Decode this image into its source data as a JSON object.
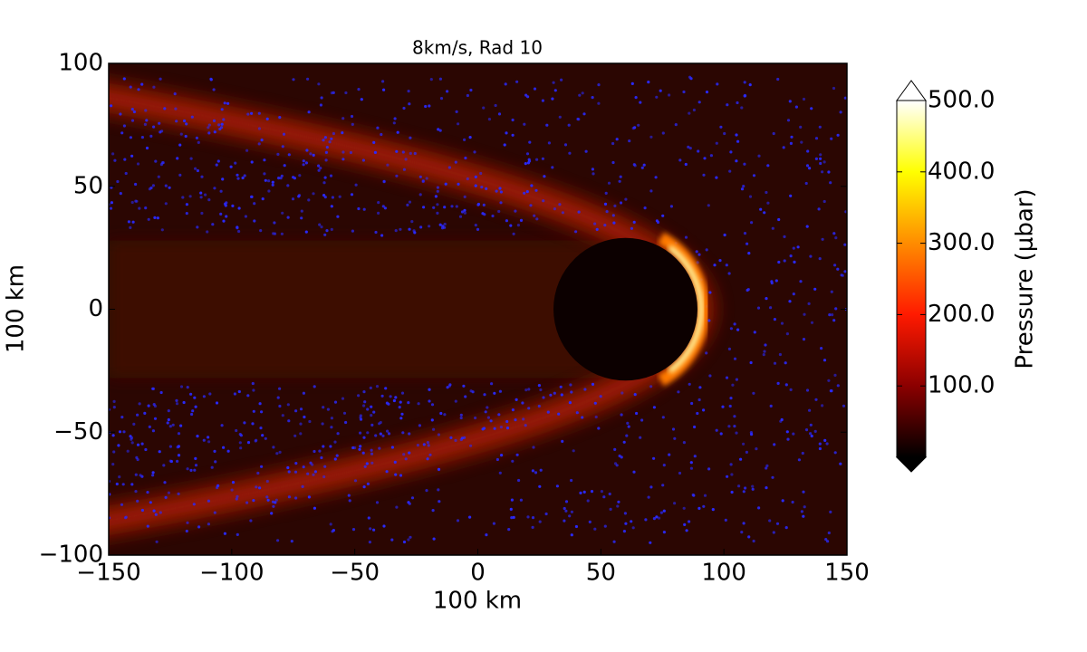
{
  "chart_data": {
    "type": "heatmap",
    "title": "8km/s, Rad 10",
    "xlabel": "100 km",
    "ylabel": "100 km",
    "xlim": [
      -150,
      150
    ],
    "xticks": [
      {
        "value": -150,
        "label": "−150"
      },
      {
        "value": -100,
        "label": "−100"
      },
      {
        "value": -50,
        "label": "−50"
      },
      0,
      50,
      100,
      150
    ],
    "ylim": [
      -100,
      100
    ],
    "yticks": [
      {
        "value": -100,
        "label": "−100"
      },
      {
        "value": -50,
        "label": "−50"
      },
      0,
      50,
      100
    ],
    "colorbar": {
      "label": "Pressure (μbar)",
      "lim": [
        0,
        500
      ],
      "ticks": [
        {
          "value": 100,
          "label": "100.0"
        },
        {
          "value": 200,
          "label": "200.0"
        },
        {
          "value": 300,
          "label": "300.0"
        },
        {
          "value": 400,
          "label": "400.0"
        },
        {
          "value": 500,
          "label": "500.0"
        }
      ],
      "colormap": [
        "#000000",
        "#8b0000",
        "#ff1a00",
        "#ff8c00",
        "#ffff00",
        "#ffffff"
      ]
    }
  }
}
